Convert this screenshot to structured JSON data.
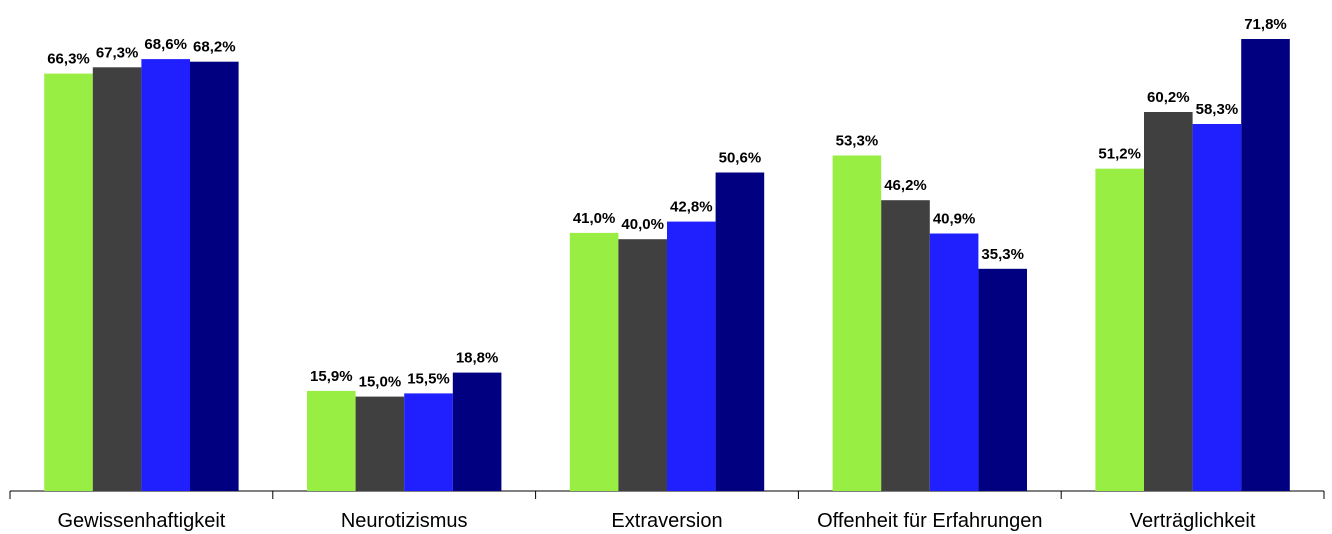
{
  "chart_data": {
    "type": "bar",
    "categories": [
      "Gewissenhaftigkeit",
      "Neurotizismus",
      "Extraversion",
      "Offenheit für Erfahrungen",
      "Verträglichkeit"
    ],
    "series": [
      {
        "color": "#99ee44",
        "values": [
          66.3,
          15.9,
          41.0,
          53.3,
          51.2
        ]
      },
      {
        "color": "#404040",
        "values": [
          67.3,
          15.0,
          40.0,
          46.2,
          60.2
        ]
      },
      {
        "color": "#2020ff",
        "values": [
          68.6,
          15.5,
          42.8,
          40.9,
          58.3
        ]
      },
      {
        "color": "#000080",
        "values": [
          68.2,
          18.8,
          50.6,
          35.3,
          71.8
        ]
      }
    ],
    "value_labels": [
      [
        "66,3%",
        "15,9%",
        "41,0%",
        "53,3%",
        "51,2%"
      ],
      [
        "67,3%",
        "15,0%",
        "40,0%",
        "46,2%",
        "60,2%"
      ],
      [
        "68,6%",
        "15,5%",
        "42,8%",
        "40,9%",
        "58,3%"
      ],
      [
        "68,2%",
        "18,8%",
        "50,6%",
        "35,3%",
        "71,8%"
      ]
    ],
    "ylim": [
      0,
      73
    ],
    "grid": false,
    "legend": "none"
  }
}
